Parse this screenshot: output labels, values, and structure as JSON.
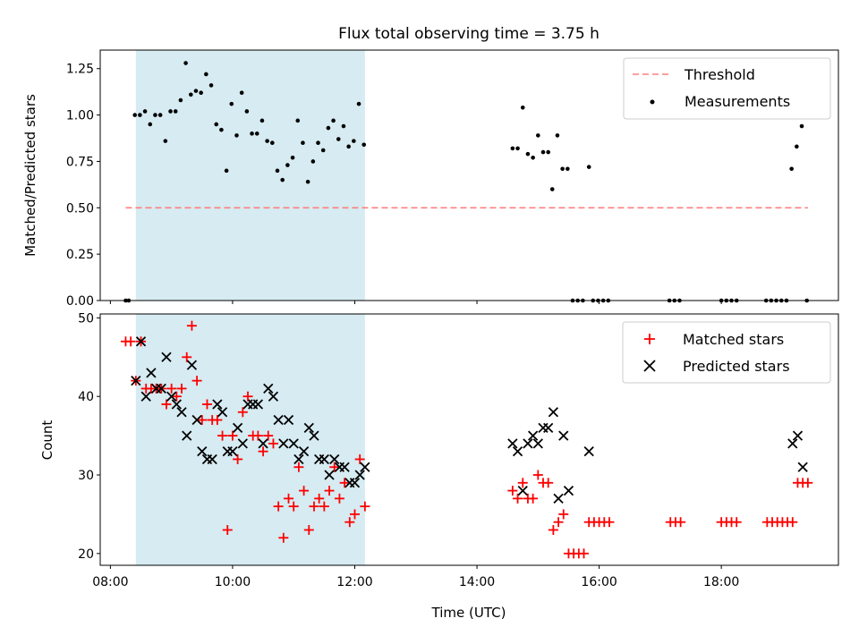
{
  "chart_data": [
    {
      "type": "scatter",
      "title": "Flux total observing time = 3.75 h",
      "xlabel": "",
      "ylabel": "Matched/Predicted stars",
      "xlim": [
        "07:50",
        "19:55"
      ],
      "ylim": [
        0,
        1.35
      ],
      "yticks": [
        "0.00",
        "0.25",
        "0.50",
        "0.75",
        "1.00",
        "1.25"
      ],
      "shaded_span": [
        "08:25",
        "12:10"
      ],
      "threshold": {
        "label": "Threshold",
        "y": 0.5,
        "x_range": [
          "08:15",
          "19:25"
        ],
        "color": "#ff7f7f"
      },
      "legend": {
        "position": "top-right",
        "entries": [
          "Threshold",
          "Measurements"
        ]
      },
      "series": [
        {
          "name": "Measurements",
          "color": "#000000",
          "points": [
            [
              "08:15",
              0.0
            ],
            [
              "08:18",
              0.0
            ],
            [
              "08:24",
              1.0
            ],
            [
              "08:29",
              1.0
            ],
            [
              "08:34",
              1.02
            ],
            [
              "08:39",
              0.95
            ],
            [
              "08:44",
              1.0
            ],
            [
              "08:49",
              1.0
            ],
            [
              "08:54",
              0.86
            ],
            [
              "08:59",
              1.02
            ],
            [
              "09:04",
              1.02
            ],
            [
              "09:09",
              1.08
            ],
            [
              "09:14",
              1.28
            ],
            [
              "09:19",
              1.11
            ],
            [
              "09:24",
              1.13
            ],
            [
              "09:29",
              1.12
            ],
            [
              "09:34",
              1.22
            ],
            [
              "09:39",
              1.16
            ],
            [
              "09:44",
              0.95
            ],
            [
              "09:49",
              0.92
            ],
            [
              "09:54",
              0.7
            ],
            [
              "09:59",
              1.06
            ],
            [
              "10:04",
              0.89
            ],
            [
              "10:09",
              1.12
            ],
            [
              "10:14",
              1.02
            ],
            [
              "10:19",
              0.9
            ],
            [
              "10:24",
              0.9
            ],
            [
              "10:29",
              0.97
            ],
            [
              "10:34",
              0.86
            ],
            [
              "10:39",
              0.85
            ],
            [
              "10:44",
              0.7
            ],
            [
              "10:49",
              0.65
            ],
            [
              "10:54",
              0.73
            ],
            [
              "10:59",
              0.77
            ],
            [
              "11:04",
              0.97
            ],
            [
              "11:09",
              0.85
            ],
            [
              "11:14",
              0.64
            ],
            [
              "11:19",
              0.75
            ],
            [
              "11:24",
              0.85
            ],
            [
              "11:29",
              0.81
            ],
            [
              "11:34",
              0.93
            ],
            [
              "11:39",
              0.97
            ],
            [
              "11:44",
              0.87
            ],
            [
              "11:49",
              0.94
            ],
            [
              "11:54",
              0.83
            ],
            [
              "11:59",
              0.86
            ],
            [
              "12:04",
              1.06
            ],
            [
              "12:09",
              0.84
            ],
            [
              "14:35",
              0.82
            ],
            [
              "14:40",
              0.82
            ],
            [
              "14:45",
              1.04
            ],
            [
              "14:50",
              0.79
            ],
            [
              "14:55",
              0.77
            ],
            [
              "15:00",
              0.89
            ],
            [
              "15:05",
              0.8
            ],
            [
              "15:10",
              0.8
            ],
            [
              "15:14",
              0.6
            ],
            [
              "15:19",
              0.89
            ],
            [
              "15:24",
              0.71
            ],
            [
              "15:29",
              0.71
            ],
            [
              "15:34",
              0.0
            ],
            [
              "15:39",
              0.0
            ],
            [
              "15:44",
              0.0
            ],
            [
              "15:50",
              0.72
            ],
            [
              "15:54",
              0.0
            ],
            [
              "15:59",
              0.0
            ],
            [
              "16:04",
              0.0
            ],
            [
              "16:09",
              0.0
            ],
            [
              "17:09",
              0.0
            ],
            [
              "17:14",
              0.0
            ],
            [
              "17:19",
              0.0
            ],
            [
              "18:00",
              0.0
            ],
            [
              "18:05",
              0.0
            ],
            [
              "18:10",
              0.0
            ],
            [
              "18:15",
              0.0
            ],
            [
              "18:44",
              0.0
            ],
            [
              "18:49",
              0.0
            ],
            [
              "18:54",
              0.0
            ],
            [
              "18:59",
              0.0
            ],
            [
              "19:04",
              0.0
            ],
            [
              "19:09",
              0.71
            ],
            [
              "19:14",
              0.83
            ],
            [
              "19:19",
              0.94
            ],
            [
              "19:24",
              0.0
            ]
          ]
        }
      ]
    },
    {
      "type": "scatter",
      "title": "",
      "xlabel": "Time (UTC)",
      "ylabel": "Count",
      "xlim": [
        "07:50",
        "19:55"
      ],
      "ylim": [
        18.5,
        50.5
      ],
      "xticks": [
        "08:00",
        "10:00",
        "12:00",
        "14:00",
        "16:00",
        "18:00"
      ],
      "yticks": [
        "20",
        "30",
        "40",
        "50"
      ],
      "shaded_span": [
        "08:25",
        "12:10"
      ],
      "legend": {
        "position": "top-right",
        "entries": [
          "Matched stars",
          "Predicted stars"
        ]
      },
      "series": [
        {
          "name": "Matched stars",
          "marker": "plus",
          "color": "#ff0000",
          "points": [
            [
              "08:15",
              47
            ],
            [
              "08:20",
              47
            ],
            [
              "08:25",
              42
            ],
            [
              "08:30",
              47
            ],
            [
              "08:35",
              41
            ],
            [
              "08:40",
              41
            ],
            [
              "08:45",
              41
            ],
            [
              "08:50",
              41
            ],
            [
              "08:55",
              39
            ],
            [
              "09:00",
              41
            ],
            [
              "09:05",
              40
            ],
            [
              "09:10",
              41
            ],
            [
              "09:15",
              45
            ],
            [
              "09:20",
              49
            ],
            [
              "09:25",
              42
            ],
            [
              "09:30",
              37
            ],
            [
              "09:35",
              39
            ],
            [
              "09:40",
              37
            ],
            [
              "09:45",
              37
            ],
            [
              "09:50",
              35
            ],
            [
              "09:55",
              23
            ],
            [
              "10:00",
              35
            ],
            [
              "10:05",
              32
            ],
            [
              "10:10",
              38
            ],
            [
              "10:15",
              40
            ],
            [
              "10:20",
              35
            ],
            [
              "10:25",
              35
            ],
            [
              "10:30",
              33
            ],
            [
              "10:35",
              35
            ],
            [
              "10:40",
              34
            ],
            [
              "10:45",
              26
            ],
            [
              "10:50",
              22
            ],
            [
              "10:55",
              27
            ],
            [
              "11:00",
              26
            ],
            [
              "11:05",
              31
            ],
            [
              "11:10",
              28
            ],
            [
              "11:15",
              23
            ],
            [
              "11:20",
              26
            ],
            [
              "11:25",
              27
            ],
            [
              "11:30",
              26
            ],
            [
              "11:35",
              28
            ],
            [
              "11:40",
              31
            ],
            [
              "11:45",
              27
            ],
            [
              "11:50",
              29
            ],
            [
              "11:55",
              24
            ],
            [
              "12:00",
              25
            ],
            [
              "12:05",
              32
            ],
            [
              "12:10",
              26
            ],
            [
              "14:35",
              28
            ],
            [
              "14:40",
              27
            ],
            [
              "14:45",
              29
            ],
            [
              "14:50",
              27
            ],
            [
              "14:55",
              27
            ],
            [
              "15:00",
              30
            ],
            [
              "15:05",
              29
            ],
            [
              "15:10",
              29
            ],
            [
              "15:15",
              23
            ],
            [
              "15:20",
              24
            ],
            [
              "15:25",
              25
            ],
            [
              "15:30",
              20
            ],
            [
              "15:35",
              20
            ],
            [
              "15:40",
              20
            ],
            [
              "15:45",
              20
            ],
            [
              "15:50",
              24
            ],
            [
              "15:55",
              24
            ],
            [
              "16:00",
              24
            ],
            [
              "16:05",
              24
            ],
            [
              "16:10",
              24
            ],
            [
              "17:10",
              24
            ],
            [
              "17:15",
              24
            ],
            [
              "17:20",
              24
            ],
            [
              "18:00",
              24
            ],
            [
              "18:05",
              24
            ],
            [
              "18:10",
              24
            ],
            [
              "18:15",
              24
            ],
            [
              "18:45",
              24
            ],
            [
              "18:50",
              24
            ],
            [
              "18:55",
              24
            ],
            [
              "19:00",
              24
            ],
            [
              "19:05",
              24
            ],
            [
              "19:10",
              24
            ],
            [
              "19:15",
              29
            ],
            [
              "19:20",
              29
            ],
            [
              "19:25",
              29
            ]
          ]
        },
        {
          "name": "Predicted stars",
          "marker": "x",
          "color": "#000000",
          "points": [
            [
              "08:25",
              42
            ],
            [
              "08:30",
              47
            ],
            [
              "08:35",
              40
            ],
            [
              "08:40",
              43
            ],
            [
              "08:45",
              41
            ],
            [
              "08:50",
              41
            ],
            [
              "08:55",
              45
            ],
            [
              "09:00",
              40
            ],
            [
              "09:05",
              39
            ],
            [
              "09:10",
              38
            ],
            [
              "09:15",
              35
            ],
            [
              "09:20",
              44
            ],
            [
              "09:25",
              37
            ],
            [
              "09:30",
              33
            ],
            [
              "09:35",
              32
            ],
            [
              "09:40",
              32
            ],
            [
              "09:45",
              39
            ],
            [
              "09:50",
              38
            ],
            [
              "09:55",
              33
            ],
            [
              "10:00",
              33
            ],
            [
              "10:05",
              36
            ],
            [
              "10:10",
              34
            ],
            [
              "10:15",
              39
            ],
            [
              "10:20",
              39
            ],
            [
              "10:25",
              39
            ],
            [
              "10:30",
              34
            ],
            [
              "10:35",
              41
            ],
            [
              "10:40",
              40
            ],
            [
              "10:45",
              37
            ],
            [
              "10:50",
              34
            ],
            [
              "10:55",
              37
            ],
            [
              "11:00",
              34
            ],
            [
              "11:05",
              32
            ],
            [
              "11:10",
              33
            ],
            [
              "11:15",
              36
            ],
            [
              "11:20",
              35
            ],
            [
              "11:25",
              32
            ],
            [
              "11:30",
              32
            ],
            [
              "11:35",
              30
            ],
            [
              "11:40",
              32
            ],
            [
              "11:45",
              31
            ],
            [
              "11:50",
              31
            ],
            [
              "11:55",
              29
            ],
            [
              "12:00",
              29
            ],
            [
              "12:05",
              30
            ],
            [
              "12:10",
              31
            ],
            [
              "14:35",
              34
            ],
            [
              "14:40",
              33
            ],
            [
              "14:45",
              28
            ],
            [
              "14:50",
              34
            ],
            [
              "14:55",
              35
            ],
            [
              "15:00",
              34
            ],
            [
              "15:05",
              36
            ],
            [
              "15:10",
              36
            ],
            [
              "15:15",
              38
            ],
            [
              "15:20",
              27
            ],
            [
              "15:25",
              35
            ],
            [
              "15:30",
              28
            ],
            [
              "15:50",
              33
            ],
            [
              "19:10",
              34
            ],
            [
              "19:15",
              35
            ],
            [
              "19:20",
              31
            ]
          ]
        }
      ]
    }
  ]
}
